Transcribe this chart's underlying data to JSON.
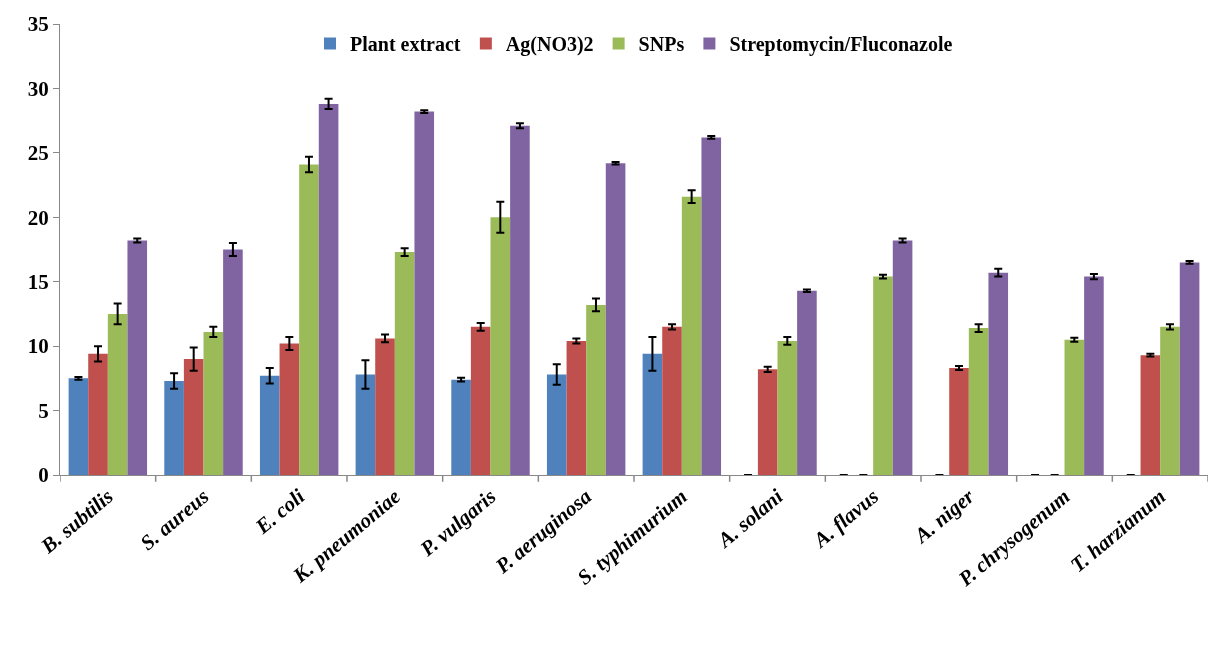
{
  "chart_data": {
    "type": "bar",
    "categories": [
      "B. subtilis",
      "S. aureus",
      "E. coli",
      "K. pneumoniae",
      "P. vulgaris",
      "P. aeruginosa",
      "S. typhimurium",
      "A. solani",
      "A. flavus",
      "A. niger",
      "P. chrysogenum",
      "T. harzianum"
    ],
    "series": [
      {
        "name": "Plant extract",
        "color": "#4f81bd",
        "values": [
          7.5,
          7.3,
          7.7,
          7.8,
          7.4,
          7.8,
          9.4,
          0,
          0,
          0,
          0,
          0
        ],
        "errors": [
          0.1,
          0.6,
          0.6,
          1.1,
          0.15,
          0.8,
          1.3,
          0,
          0,
          0,
          0,
          0
        ]
      },
      {
        "name": "Ag(NO3)2",
        "color": "#c0504d",
        "values": [
          9.4,
          9.0,
          10.2,
          10.6,
          11.5,
          10.4,
          11.5,
          8.2,
          0,
          8.3,
          0,
          9.3
        ],
        "errors": [
          0.6,
          0.9,
          0.5,
          0.3,
          0.3,
          0.2,
          0.2,
          0.2,
          0,
          0.15,
          0,
          0.1
        ]
      },
      {
        "name": "SNPs",
        "color": "#9bbb59",
        "values": [
          12.5,
          11.1,
          24.1,
          17.3,
          20.0,
          13.2,
          21.6,
          10.4,
          15.4,
          11.4,
          10.5,
          11.5
        ],
        "errors": [
          0.8,
          0.4,
          0.6,
          0.3,
          1.2,
          0.5,
          0.5,
          0.3,
          0.15,
          0.3,
          0.15,
          0.2
        ]
      },
      {
        "name": "Streptomycin/Fluconazole",
        "color": "#8064a2",
        "values": [
          18.2,
          17.5,
          28.8,
          28.2,
          27.1,
          24.2,
          26.2,
          14.3,
          18.2,
          15.7,
          15.4,
          16.5
        ],
        "errors": [
          0.15,
          0.5,
          0.4,
          0.1,
          0.2,
          0.1,
          0.1,
          0.1,
          0.15,
          0.3,
          0.2,
          0.1
        ]
      }
    ],
    "ylim": [
      0,
      35
    ],
    "yticks": [
      0,
      5,
      10,
      15,
      20,
      25,
      30,
      35
    ],
    "grid": false,
    "legend": "top"
  }
}
